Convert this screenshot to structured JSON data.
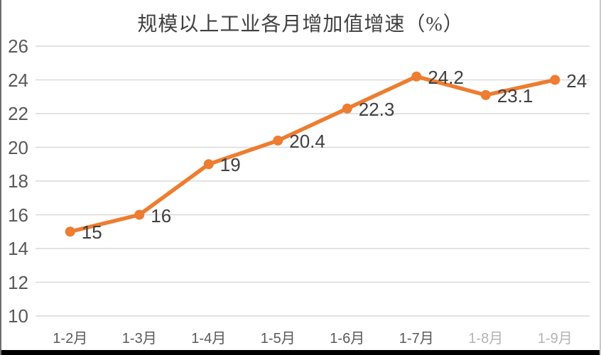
{
  "chart_data": {
    "type": "line",
    "title": "规模以上工业各月增加值增速（%）",
    "categories": [
      "1-2月",
      "1-3月",
      "1-4月",
      "1-5月",
      "1-6月",
      "1-7月",
      "1-8月",
      "1-9月"
    ],
    "series": [
      {
        "name": "规模以上工业各月增加值增速",
        "values": [
          15,
          16,
          19,
          20.4,
          22.3,
          24.2,
          23.1,
          24
        ]
      }
    ],
    "data_labels": [
      "15",
      "16",
      "19",
      "20.4",
      "22.3",
      "24.2",
      "23.1",
      "24"
    ],
    "xlabel": "",
    "ylabel": "",
    "ylim": [
      10,
      26
    ],
    "yticks": [
      10,
      12,
      14,
      16,
      18,
      20,
      22,
      24,
      26
    ],
    "grid": true,
    "legend": "none",
    "line_color": "#ED7D31",
    "marker": "circle",
    "faded_category_indices": [
      6,
      7
    ]
  },
  "style": {
    "background": "#FFFFFF",
    "grid_color": "#D9D9D9",
    "axis_label_color": "#595959",
    "data_label_color": "#404040",
    "title_color": "#404040",
    "left_border_color": "#6E6E6E",
    "right_border_color": "#C9C9C9",
    "bottom_bar_color": "#000000"
  }
}
